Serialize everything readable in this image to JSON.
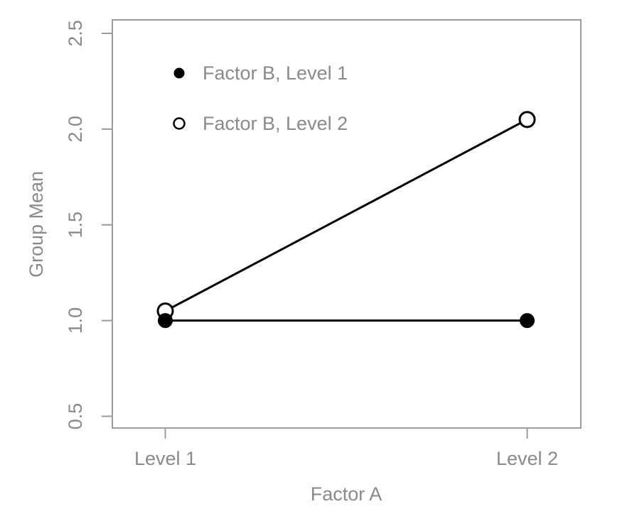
{
  "chart_data": {
    "type": "line",
    "title": "",
    "xlabel": "Factor A",
    "ylabel": "Group Mean",
    "categories": [
      "Level 1",
      "Level 2"
    ],
    "series": [
      {
        "name": "Factor B, Level 1",
        "marker": "filled-circle",
        "values": [
          1.0,
          1.0
        ]
      },
      {
        "name": "Factor B, Level 2",
        "marker": "open-circle",
        "values": [
          1.05,
          2.05
        ]
      }
    ],
    "yticks": [
      0.5,
      1.0,
      1.5,
      2.0,
      2.5
    ],
    "ytick_labels": [
      "0.5",
      "1.0",
      "1.5",
      "2.0",
      "2.5"
    ],
    "ylim": [
      0.44,
      2.57
    ],
    "grid": false,
    "legend_position": "top-left-inside",
    "legend_labels": [
      "Factor B, Level 1",
      "Factor B, Level 2"
    ],
    "colors": {
      "data": "#000000",
      "axis": "#9b9b9b",
      "text": "#8a8a8a",
      "background": "#ffffff",
      "open_marker_fill": "#ffffff"
    }
  }
}
